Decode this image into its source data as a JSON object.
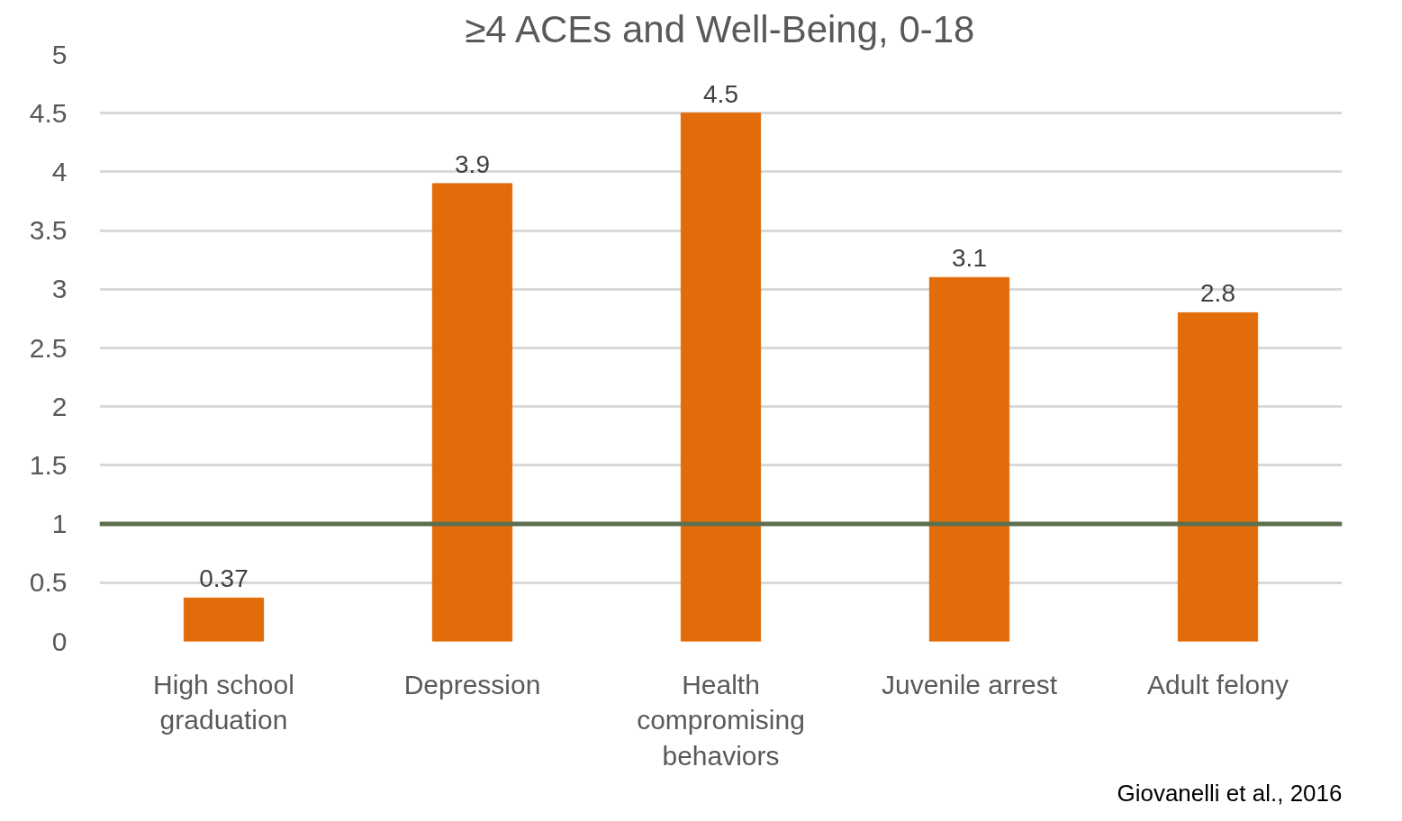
{
  "chart_data": {
    "type": "bar",
    "title": "≥4 ACEs and Well-Being, 0-18",
    "categories": [
      "High school graduation",
      "Depression",
      "Health compromising behaviors",
      "Juvenile arrest",
      "Adult felony"
    ],
    "values": [
      0.37,
      3.9,
      4.5,
      3.1,
      2.8
    ],
    "color": "#e36c0a",
    "ylim": [
      0,
      5
    ],
    "yticks": [
      0,
      0.5,
      1,
      1.5,
      2,
      2.5,
      3,
      3.5,
      4,
      4.5,
      5
    ],
    "grid": "y",
    "data_labels": true,
    "ref_lines": [
      {
        "axis": "y",
        "value": 1,
        "color": "#5e6f4f"
      }
    ],
    "annotations": [
      "Giovanelli et al., 2016"
    ]
  }
}
